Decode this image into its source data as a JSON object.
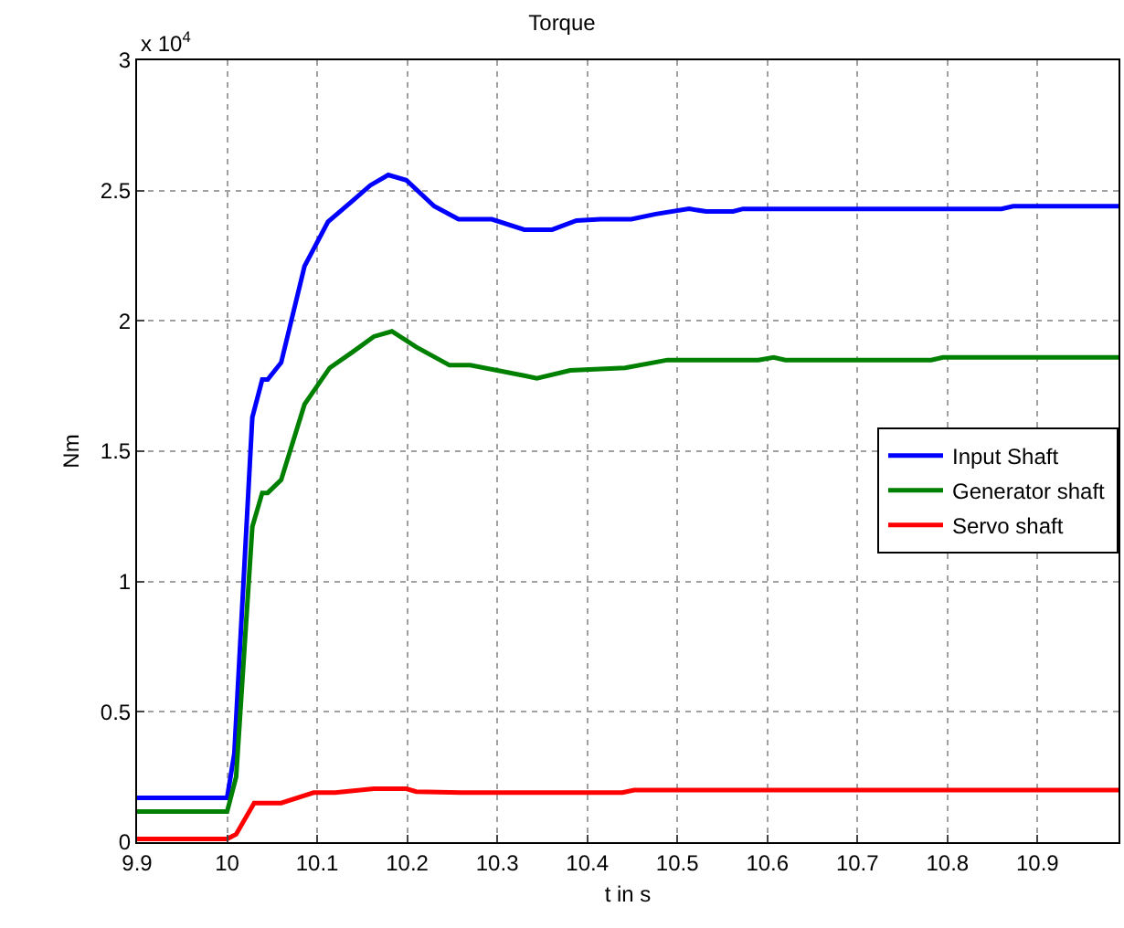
{
  "chart_data": {
    "type": "line",
    "title": "Torque",
    "xlabel": "t in s",
    "ylabel": "Nm",
    "annotations": [
      "x 10$^{4}$"
    ],
    "xlim": [
      9.9,
      10.99
    ],
    "xticks": [
      9.9,
      10,
      10.1,
      10.2,
      10.3,
      10.4,
      10.5,
      10.6,
      10.7,
      10.8,
      10.9
    ],
    "ylim": [
      0,
      3
    ],
    "yticks": [
      0,
      0.5,
      1,
      1.5,
      2,
      2.5,
      3
    ],
    "grid": true,
    "legend": "right",
    "line_style": "solid",
    "marker": "none",
    "series": [
      {
        "name": "Input Shaft",
        "color": "#0000ff",
        "x": [
          9.9,
          10.0,
          10.008,
          10.028,
          10.039,
          10.045,
          10.06,
          10.086,
          10.112,
          10.139,
          10.159,
          10.179,
          10.199,
          10.23,
          10.257,
          10.294,
          10.33,
          10.361,
          10.388,
          10.415,
          10.449,
          10.476,
          10.513,
          10.532,
          10.562,
          10.573,
          10.86,
          10.873,
          10.99
        ],
        "values": [
          0.17,
          0.17,
          0.34,
          1.63,
          1.775,
          1.775,
          1.84,
          2.21,
          2.38,
          2.46,
          2.52,
          2.56,
          2.54,
          2.44,
          2.39,
          2.39,
          2.35,
          2.35,
          2.385,
          2.39,
          2.39,
          2.41,
          2.43,
          2.42,
          2.42,
          2.43,
          2.43,
          2.44,
          2.44
        ]
      },
      {
        "name": "Generator shaft",
        "color": "#008000",
        "x": [
          9.9,
          10.0,
          10.01,
          10.028,
          10.039,
          10.045,
          10.06,
          10.086,
          10.114,
          10.139,
          10.163,
          10.183,
          10.21,
          10.247,
          10.27,
          10.33,
          10.344,
          10.381,
          10.442,
          10.489,
          10.59,
          10.607,
          10.62,
          10.782,
          10.795,
          10.99
        ],
        "values": [
          0.117,
          0.117,
          0.25,
          1.21,
          1.34,
          1.34,
          1.39,
          1.68,
          1.82,
          1.88,
          1.94,
          1.96,
          1.9,
          1.83,
          1.83,
          1.79,
          1.78,
          1.81,
          1.82,
          1.85,
          1.85,
          1.86,
          1.85,
          1.85,
          1.86,
          1.86
        ]
      },
      {
        "name": "Servo shaft",
        "color": "#ff0000",
        "x": [
          9.9,
          10.0,
          10.01,
          10.03,
          10.06,
          10.096,
          10.12,
          10.163,
          10.199,
          10.21,
          10.26,
          10.439,
          10.452,
          10.99
        ],
        "values": [
          0.012,
          0.012,
          0.03,
          0.15,
          0.15,
          0.19,
          0.19,
          0.205,
          0.205,
          0.194,
          0.19,
          0.19,
          0.2,
          0.2
        ]
      }
    ]
  }
}
